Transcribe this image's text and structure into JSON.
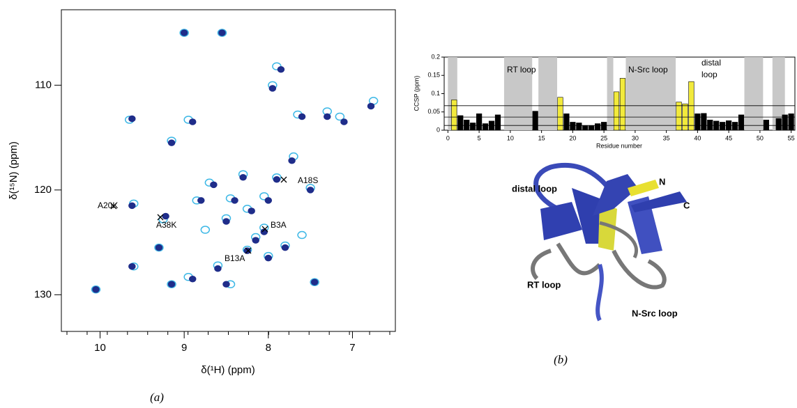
{
  "chart_data": [
    {
      "type": "scatter",
      "x_label": "δ(¹H) (ppm)",
      "y_label": "δ(¹⁵N) (ppm)",
      "xlim": [
        10.46,
        6.49
      ],
      "ylim": [
        102.8,
        133.5
      ],
      "y_inverted": true,
      "xticks": [
        10,
        9,
        8,
        7
      ],
      "yticks": [
        110,
        120,
        130
      ],
      "series": [
        {
          "color": "#3db8e6",
          "x": [
            9.0,
            8.55,
            10.05,
            9.6,
            9.25,
            9.6,
            9.3,
            9.65,
            7.7,
            8.25,
            8.05,
            8.7,
            8.45,
            8.25,
            8.05,
            7.9,
            8.85,
            8.5,
            7.45,
            8.95,
            9.15,
            8.6,
            8.45,
            7.5,
            8.0,
            7.8,
            8.95,
            7.9,
            7.95,
            7.3,
            7.15,
            6.75,
            9.15,
            7.65,
            8.3,
            8.15,
            7.6,
            8.75
          ],
          "y": [
            105,
            105,
            129.5,
            121.3,
            122.8,
            127.3,
            125.5,
            113.3,
            116.8,
            125.7,
            123.6,
            119.3,
            120.8,
            121.8,
            120.6,
            118.8,
            121,
            122.7,
            128.8,
            128.3,
            129,
            127.2,
            129,
            119.8,
            126.3,
            125.3,
            113.3,
            108.2,
            110,
            112.5,
            113,
            111.5,
            115.3,
            112.8,
            118.5,
            124.5,
            124.3,
            123.8
          ]
        },
        {
          "color": "#1f2d8a",
          "x": [
            9.0,
            8.55,
            10.05,
            9.62,
            9.22,
            9.62,
            9.3,
            9.62,
            7.72,
            8.25,
            8.05,
            8.65,
            8.4,
            8.2,
            8.0,
            7.9,
            8.8,
            8.5,
            7.45,
            8.9,
            9.15,
            8.6,
            8.5,
            7.5,
            8.0,
            7.8,
            8.9,
            7.85,
            7.95,
            7.3,
            7.1,
            6.78,
            9.15,
            7.6,
            8.3,
            8.15
          ],
          "y": [
            105,
            105,
            129.5,
            121.5,
            122.5,
            127.3,
            125.5,
            113.2,
            117.2,
            125.8,
            124,
            119.5,
            121,
            122,
            121,
            119,
            121,
            123,
            128.8,
            128.5,
            129,
            127.5,
            129,
            120,
            126.5,
            125.5,
            113.5,
            108.5,
            110.3,
            113,
            113.5,
            112,
            115.5,
            113,
            118.8,
            124.8
          ]
        }
      ],
      "annotations": [
        "A18S",
        "A20K",
        "A38K",
        "B3A",
        "B13A"
      ]
    },
    {
      "type": "bar",
      "x_label": "Residue number",
      "y_label": "CCSP (ppm)",
      "xlim": [
        -0.6,
        55.6
      ],
      "ylim": [
        0,
        0.2
      ],
      "xticks": [
        0,
        5,
        10,
        15,
        20,
        25,
        30,
        35,
        40,
        45,
        50,
        55
      ],
      "yticks": [
        0,
        0.05,
        0.1,
        0.15,
        0.2
      ],
      "x": [
        1,
        2,
        3,
        4,
        5,
        6,
        7,
        8,
        14,
        18,
        19,
        20,
        21,
        22,
        23,
        24,
        25,
        27,
        28,
        37,
        38,
        39,
        40,
        41,
        42,
        43,
        44,
        45,
        46,
        47,
        51,
        53,
        54,
        55
      ],
      "values": [
        0.083,
        0.04,
        0.028,
        0.02,
        0.045,
        0.018,
        0.025,
        0.042,
        0.052,
        0.09,
        0.045,
        0.022,
        0.02,
        0.012,
        0.012,
        0.018,
        0.022,
        0.105,
        0.142,
        0.077,
        0.072,
        0.133,
        0.045,
        0.046,
        0.028,
        0.025,
        0.022,
        0.026,
        0.022,
        0.042,
        0.028,
        0.032,
        0.042,
        0.045
      ],
      "highlight": [
        1,
        18,
        27,
        28,
        37,
        38,
        39
      ],
      "color": "#000000",
      "highlight_color": "#f2ea3c",
      "threshold_lines": [
        0.067,
        0.036,
        0.013
      ],
      "regions": [
        [
          0,
          1.5
        ],
        [
          9,
          13.5
        ],
        [
          14.5,
          17.5
        ],
        [
          25.5,
          26.5
        ],
        [
          28.5,
          36.5
        ],
        [
          47.5,
          50.5
        ],
        [
          52,
          54
        ]
      ],
      "region_labels": [
        "RT loop",
        "N-Src loop",
        "distal",
        "loop"
      ]
    }
  ],
  "figure": {
    "captions": [
      "(a)",
      "(b)"
    ],
    "structure_labels": [
      "distal loop",
      "N",
      "C",
      "RT loop",
      "N-Src loop"
    ]
  }
}
